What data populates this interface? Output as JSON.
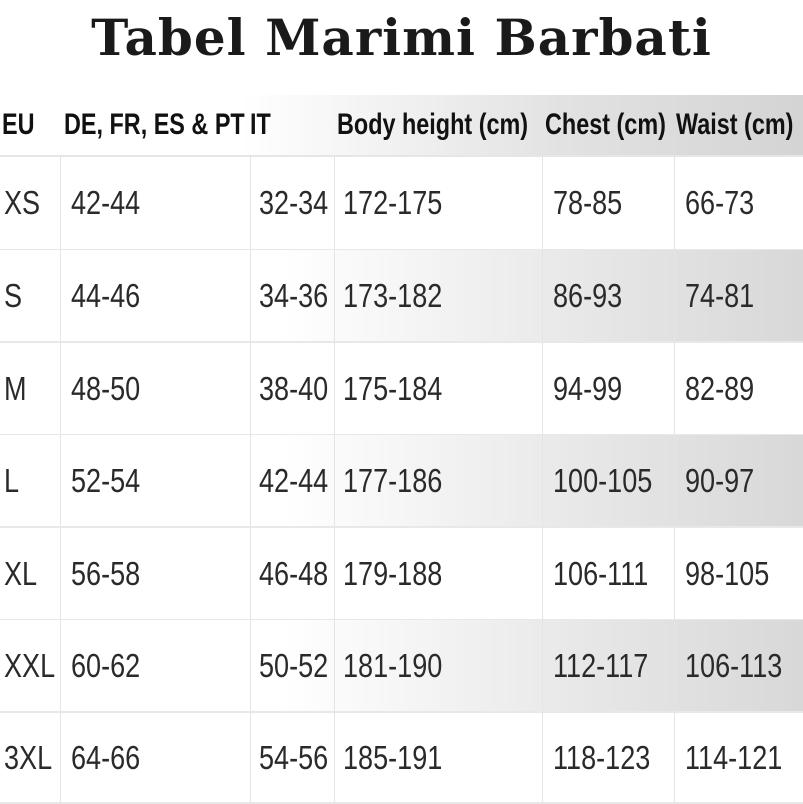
{
  "title": "Tabel Marimi Barbati",
  "columns": [
    "EU",
    "DE, FR, ES & PT",
    "IT",
    "Body height (cm)",
    "Chest (cm)",
    "Waist (cm)"
  ],
  "rows": [
    [
      "XS",
      "42-44",
      "32-34",
      "172-175",
      "78-85",
      "66-73"
    ],
    [
      "S",
      "44-46",
      "34-36",
      "173-182",
      "86-93",
      "74-81"
    ],
    [
      "M",
      "48-50",
      "38-40",
      "175-184",
      "94-99",
      "82-89"
    ],
    [
      "L",
      "52-54",
      "42-44",
      "177-186",
      "100-105",
      "90-97"
    ],
    [
      "XL",
      "56-58",
      "46-48",
      "179-188",
      "106-111",
      "98-105"
    ],
    [
      "XXL",
      "60-62",
      "50-52",
      "181-190",
      "112-117",
      "106-113"
    ],
    [
      "3XL",
      "64-66",
      "54-56",
      "185-191",
      "118-123",
      "114-121"
    ]
  ]
}
